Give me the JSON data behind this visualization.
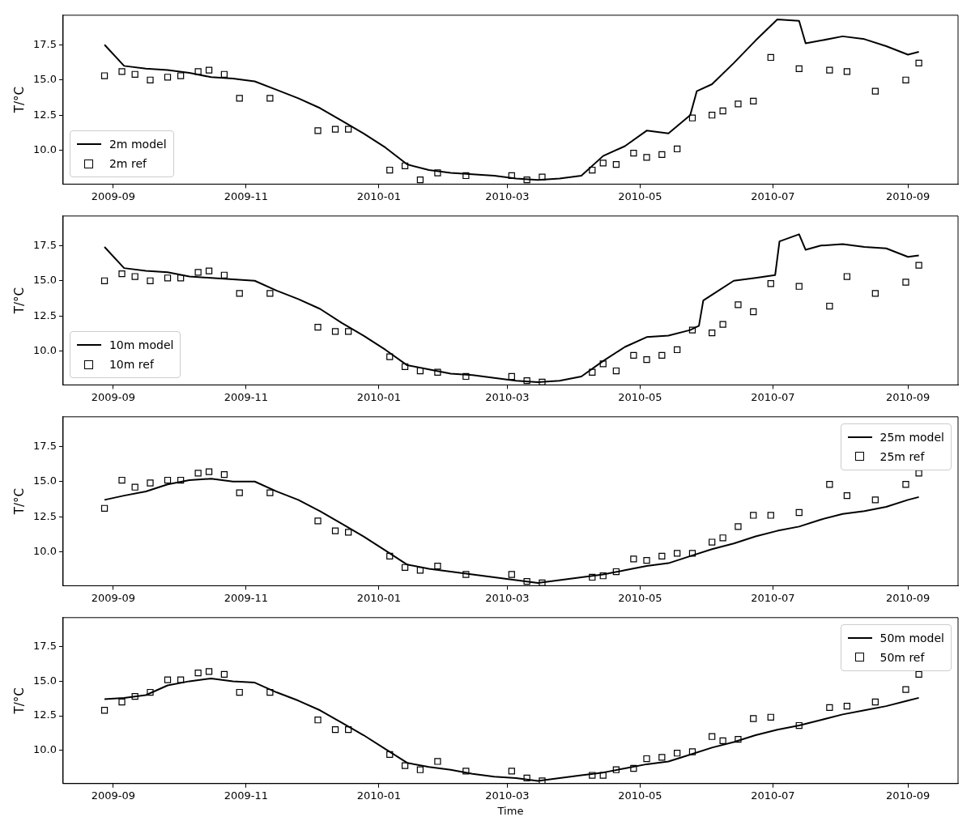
{
  "chart_data": [
    {
      "type": "line",
      "ylabel": "T/°C",
      "xlim": [
        "2009-08-09",
        "2010-09-24"
      ],
      "ylim": [
        7.6,
        19.6
      ],
      "xticks": [
        "2009-09",
        "2009-11",
        "2010-01",
        "2010-03",
        "2010-05",
        "2010-07",
        "2010-09"
      ],
      "yticks": [
        {
          "value": 10,
          "label": "10.0"
        },
        {
          "value": 12.5,
          "label": "12.5"
        },
        {
          "value": 15,
          "label": "15.0"
        },
        {
          "value": 17.5,
          "label": "17.5"
        }
      ],
      "grid": false,
      "legend": "bottom left",
      "series": [
        {
          "name": "2m model",
          "color": "#000000",
          "marker": "none",
          "line_style": "solid",
          "x": [
            "2009-08-28",
            "2009-09-06",
            "2009-09-16",
            "2009-09-26",
            "2009-10-06",
            "2009-10-16",
            "2009-10-26",
            "2009-11-05",
            "2009-11-15",
            "2009-11-25",
            "2009-12-05",
            "2009-12-15",
            "2009-12-25",
            "2010-01-04",
            "2010-01-14",
            "2010-01-24",
            "2010-02-03",
            "2010-02-13",
            "2010-02-23",
            "2010-03-05",
            "2010-03-15",
            "2010-03-25",
            "2010-04-04",
            "2010-04-14",
            "2010-04-24",
            "2010-05-04",
            "2010-05-14",
            "2010-05-24",
            "2010-05-27",
            "2010-06-03",
            "2010-06-13",
            "2010-06-23",
            "2010-07-03",
            "2010-07-13",
            "2010-07-16",
            "2010-07-23",
            "2010-08-02",
            "2010-08-12",
            "2010-08-22",
            "2010-09-01",
            "2010-09-06"
          ],
          "values": [
            17.5,
            16.0,
            15.8,
            15.7,
            15.5,
            15.2,
            15.1,
            14.9,
            14.3,
            13.7,
            13.0,
            12.1,
            11.2,
            10.2,
            9.0,
            8.6,
            8.4,
            8.3,
            8.2,
            8.0,
            7.9,
            8.0,
            8.2,
            9.6,
            10.3,
            11.4,
            11.2,
            12.5,
            14.2,
            14.7,
            16.2,
            17.8,
            19.3,
            19.2,
            17.6,
            17.8,
            18.1,
            17.9,
            17.4,
            16.8,
            17.0
          ]
        },
        {
          "name": "2m ref",
          "type": "scatter",
          "color": "#000000",
          "marker": "square",
          "x": [
            "2009-08-28",
            "2009-09-05",
            "2009-09-11",
            "2009-09-18",
            "2009-09-26",
            "2009-10-02",
            "2009-10-10",
            "2009-10-15",
            "2009-10-22",
            "2009-10-29",
            "2009-11-12",
            "2009-12-04",
            "2009-12-12",
            "2009-12-18",
            "2010-01-06",
            "2010-01-13",
            "2010-01-20",
            "2010-01-28",
            "2010-02-10",
            "2010-03-03",
            "2010-03-10",
            "2010-03-17",
            "2010-04-09",
            "2010-04-14",
            "2010-04-20",
            "2010-04-28",
            "2010-05-04",
            "2010-05-11",
            "2010-05-18",
            "2010-05-25",
            "2010-06-03",
            "2010-06-08",
            "2010-06-15",
            "2010-06-22",
            "2010-06-30",
            "2010-07-13",
            "2010-07-27",
            "2010-08-04",
            "2010-08-17",
            "2010-08-31",
            "2010-09-06"
          ],
          "values": [
            15.3,
            15.6,
            15.4,
            15.0,
            15.2,
            15.3,
            15.6,
            15.7,
            15.4,
            13.7,
            13.7,
            11.4,
            11.5,
            11.5,
            8.6,
            8.9,
            7.9,
            8.4,
            8.2,
            8.2,
            7.9,
            8.1,
            8.6,
            9.1,
            9.0,
            9.8,
            9.5,
            9.7,
            10.1,
            12.3,
            12.5,
            12.8,
            13.3,
            13.5,
            16.6,
            15.8,
            15.7,
            15.6,
            14.2,
            15.0,
            16.2
          ]
        }
      ]
    },
    {
      "type": "line",
      "ylabel": "T/°C",
      "xlim": [
        "2009-08-09",
        "2010-09-24"
      ],
      "ylim": [
        7.6,
        19.6
      ],
      "xticks": [
        "2009-09",
        "2009-11",
        "2010-01",
        "2010-03",
        "2010-05",
        "2010-07",
        "2010-09"
      ],
      "yticks": [
        {
          "value": 10,
          "label": "10.0"
        },
        {
          "value": 12.5,
          "label": "12.5"
        },
        {
          "value": 15,
          "label": "15.0"
        },
        {
          "value": 17.5,
          "label": "17.5"
        }
      ],
      "grid": false,
      "legend": "bottom left",
      "series": [
        {
          "name": "10m model",
          "color": "#000000",
          "marker": "none",
          "line_style": "solid",
          "x": [
            "2009-08-28",
            "2009-09-06",
            "2009-09-16",
            "2009-09-26",
            "2009-10-06",
            "2009-10-16",
            "2009-10-26",
            "2009-11-05",
            "2009-11-15",
            "2009-11-25",
            "2009-12-05",
            "2009-12-15",
            "2009-12-25",
            "2010-01-04",
            "2010-01-14",
            "2010-01-24",
            "2010-02-03",
            "2010-02-13",
            "2010-02-23",
            "2010-03-05",
            "2010-03-15",
            "2010-03-25",
            "2010-04-04",
            "2010-04-14",
            "2010-04-24",
            "2010-05-04",
            "2010-05-14",
            "2010-05-24",
            "2010-05-28",
            "2010-05-30",
            "2010-06-03",
            "2010-06-13",
            "2010-06-23",
            "2010-07-02",
            "2010-07-04",
            "2010-07-13",
            "2010-07-16",
            "2010-07-23",
            "2010-08-02",
            "2010-08-12",
            "2010-08-22",
            "2010-09-01",
            "2010-09-06"
          ],
          "values": [
            17.4,
            15.9,
            15.7,
            15.6,
            15.3,
            15.2,
            15.1,
            15.0,
            14.3,
            13.7,
            13.0,
            12.0,
            11.1,
            10.1,
            9.0,
            8.7,
            8.4,
            8.3,
            8.1,
            7.9,
            7.8,
            7.9,
            8.2,
            9.3,
            10.3,
            11.0,
            11.1,
            11.5,
            11.8,
            13.6,
            14.0,
            15.0,
            15.2,
            15.4,
            17.8,
            18.3,
            17.2,
            17.5,
            17.6,
            17.4,
            17.3,
            16.7,
            16.8
          ]
        },
        {
          "name": "10m ref",
          "type": "scatter",
          "color": "#000000",
          "marker": "square",
          "x": [
            "2009-08-28",
            "2009-09-05",
            "2009-09-11",
            "2009-09-18",
            "2009-09-26",
            "2009-10-02",
            "2009-10-10",
            "2009-10-15",
            "2009-10-22",
            "2009-10-29",
            "2009-11-12",
            "2009-12-04",
            "2009-12-12",
            "2009-12-18",
            "2010-01-06",
            "2010-01-13",
            "2010-01-20",
            "2010-01-28",
            "2010-02-10",
            "2010-03-03",
            "2010-03-10",
            "2010-03-17",
            "2010-04-09",
            "2010-04-14",
            "2010-04-20",
            "2010-04-28",
            "2010-05-04",
            "2010-05-11",
            "2010-05-18",
            "2010-05-25",
            "2010-06-03",
            "2010-06-08",
            "2010-06-15",
            "2010-06-22",
            "2010-06-30",
            "2010-07-13",
            "2010-07-27",
            "2010-08-04",
            "2010-08-17",
            "2010-08-31",
            "2010-09-06"
          ],
          "values": [
            15.0,
            15.5,
            15.3,
            15.0,
            15.2,
            15.2,
            15.6,
            15.7,
            15.4,
            14.1,
            14.1,
            11.7,
            11.4,
            11.4,
            9.6,
            8.9,
            8.6,
            8.5,
            8.2,
            8.2,
            7.9,
            7.8,
            8.5,
            9.1,
            8.6,
            9.7,
            9.4,
            9.7,
            10.1,
            11.5,
            11.3,
            11.9,
            13.3,
            12.8,
            14.8,
            14.6,
            13.2,
            15.3,
            14.1,
            14.9,
            16.1
          ]
        }
      ]
    },
    {
      "type": "line",
      "ylabel": "T/°C",
      "xlim": [
        "2009-08-09",
        "2010-09-24"
      ],
      "ylim": [
        7.6,
        19.6
      ],
      "xticks": [
        "2009-09",
        "2009-11",
        "2010-01",
        "2010-03",
        "2010-05",
        "2010-07",
        "2010-09"
      ],
      "yticks": [
        {
          "value": 10,
          "label": "10.0"
        },
        {
          "value": 12.5,
          "label": "12.5"
        },
        {
          "value": 15,
          "label": "15.0"
        },
        {
          "value": 17.5,
          "label": "17.5"
        }
      ],
      "grid": false,
      "legend": "top right",
      "series": [
        {
          "name": "25m model",
          "color": "#000000",
          "marker": "none",
          "line_style": "solid",
          "x": [
            "2009-08-28",
            "2009-09-06",
            "2009-09-16",
            "2009-09-26",
            "2009-10-06",
            "2009-10-16",
            "2009-10-26",
            "2009-11-05",
            "2009-11-15",
            "2009-11-25",
            "2009-12-05",
            "2009-12-15",
            "2009-12-25",
            "2010-01-04",
            "2010-01-14",
            "2010-01-24",
            "2010-02-03",
            "2010-02-13",
            "2010-02-23",
            "2010-03-05",
            "2010-03-15",
            "2010-03-25",
            "2010-04-04",
            "2010-04-14",
            "2010-04-24",
            "2010-05-04",
            "2010-05-14",
            "2010-05-24",
            "2010-06-03",
            "2010-06-13",
            "2010-06-23",
            "2010-07-03",
            "2010-07-13",
            "2010-07-23",
            "2010-08-02",
            "2010-08-12",
            "2010-08-22",
            "2010-09-01",
            "2010-09-06"
          ],
          "values": [
            13.7,
            14.0,
            14.3,
            14.8,
            15.1,
            15.2,
            15.0,
            15.0,
            14.3,
            13.7,
            12.9,
            12.0,
            11.1,
            10.1,
            9.1,
            8.8,
            8.6,
            8.4,
            8.2,
            8.0,
            7.8,
            8.0,
            8.2,
            8.4,
            8.7,
            9.0,
            9.2,
            9.7,
            10.2,
            10.6,
            11.1,
            11.5,
            11.8,
            12.3,
            12.7,
            12.9,
            13.2,
            13.7,
            13.9
          ]
        },
        {
          "name": "25m ref",
          "type": "scatter",
          "color": "#000000",
          "marker": "square",
          "x": [
            "2009-08-28",
            "2009-09-05",
            "2009-09-11",
            "2009-09-18",
            "2009-09-26",
            "2009-10-02",
            "2009-10-10",
            "2009-10-15",
            "2009-10-22",
            "2009-10-29",
            "2009-11-12",
            "2009-12-04",
            "2009-12-12",
            "2009-12-18",
            "2010-01-06",
            "2010-01-13",
            "2010-01-20",
            "2010-01-28",
            "2010-02-10",
            "2010-03-03",
            "2010-03-10",
            "2010-03-17",
            "2010-04-09",
            "2010-04-14",
            "2010-04-20",
            "2010-04-28",
            "2010-05-04",
            "2010-05-11",
            "2010-05-18",
            "2010-05-25",
            "2010-06-03",
            "2010-06-08",
            "2010-06-15",
            "2010-06-22",
            "2010-06-30",
            "2010-07-13",
            "2010-07-27",
            "2010-08-04",
            "2010-08-17",
            "2010-08-31",
            "2010-09-06"
          ],
          "values": [
            13.1,
            15.1,
            14.6,
            14.9,
            15.1,
            15.1,
            15.6,
            15.7,
            15.5,
            14.2,
            14.2,
            12.2,
            11.5,
            11.4,
            9.7,
            8.9,
            8.7,
            9.0,
            8.4,
            8.4,
            7.9,
            7.8,
            8.2,
            8.3,
            8.6,
            9.5,
            9.4,
            9.7,
            9.9,
            9.9,
            10.7,
            11.0,
            11.8,
            12.6,
            12.6,
            12.8,
            14.8,
            14.0,
            13.7,
            14.8,
            15.6
          ]
        }
      ]
    },
    {
      "type": "line",
      "xlabel": "Time",
      "ylabel": "T/°C",
      "xlim": [
        "2009-08-09",
        "2010-09-24"
      ],
      "ylim": [
        7.6,
        19.6
      ],
      "xticks": [
        "2009-09",
        "2009-11",
        "2010-01",
        "2010-03",
        "2010-05",
        "2010-07",
        "2010-09"
      ],
      "yticks": [
        {
          "value": 10,
          "label": "10.0"
        },
        {
          "value": 12.5,
          "label": "12.5"
        },
        {
          "value": 15,
          "label": "15.0"
        },
        {
          "value": 17.5,
          "label": "17.5"
        }
      ],
      "grid": false,
      "legend": "top right",
      "series": [
        {
          "name": "50m model",
          "color": "#000000",
          "marker": "none",
          "line_style": "solid",
          "x": [
            "2009-08-28",
            "2009-09-06",
            "2009-09-16",
            "2009-09-26",
            "2009-10-06",
            "2009-10-16",
            "2009-10-26",
            "2009-11-05",
            "2009-11-15",
            "2009-11-25",
            "2009-12-05",
            "2009-12-15",
            "2009-12-25",
            "2010-01-04",
            "2010-01-14",
            "2010-01-24",
            "2010-02-03",
            "2010-02-13",
            "2010-02-23",
            "2010-03-05",
            "2010-03-15",
            "2010-03-25",
            "2010-04-04",
            "2010-04-14",
            "2010-04-24",
            "2010-05-04",
            "2010-05-14",
            "2010-05-24",
            "2010-06-03",
            "2010-06-13",
            "2010-06-23",
            "2010-07-03",
            "2010-07-13",
            "2010-07-23",
            "2010-08-02",
            "2010-08-12",
            "2010-08-22",
            "2010-09-01",
            "2010-09-06"
          ],
          "values": [
            13.7,
            13.8,
            14.0,
            14.7,
            15.0,
            15.2,
            15.0,
            14.9,
            14.2,
            13.6,
            12.9,
            12.0,
            11.1,
            10.1,
            9.1,
            8.8,
            8.6,
            8.3,
            8.1,
            8.0,
            7.8,
            8.0,
            8.2,
            8.4,
            8.7,
            9.0,
            9.2,
            9.7,
            10.2,
            10.6,
            11.1,
            11.5,
            11.8,
            12.2,
            12.6,
            12.9,
            13.2,
            13.6,
            13.8
          ]
        },
        {
          "name": "50m ref",
          "type": "scatter",
          "color": "#000000",
          "marker": "square",
          "x": [
            "2009-08-28",
            "2009-09-05",
            "2009-09-11",
            "2009-09-18",
            "2009-09-26",
            "2009-10-02",
            "2009-10-10",
            "2009-10-15",
            "2009-10-22",
            "2009-10-29",
            "2009-11-12",
            "2009-12-04",
            "2009-12-12",
            "2009-12-18",
            "2010-01-06",
            "2010-01-13",
            "2010-01-20",
            "2010-01-28",
            "2010-02-10",
            "2010-03-03",
            "2010-03-10",
            "2010-03-17",
            "2010-04-09",
            "2010-04-14",
            "2010-04-20",
            "2010-04-28",
            "2010-05-04",
            "2010-05-11",
            "2010-05-18",
            "2010-05-25",
            "2010-06-03",
            "2010-06-08",
            "2010-06-15",
            "2010-06-22",
            "2010-06-30",
            "2010-07-13",
            "2010-07-27",
            "2010-08-04",
            "2010-08-17",
            "2010-08-31",
            "2010-09-06"
          ],
          "values": [
            12.9,
            13.5,
            13.9,
            14.2,
            15.1,
            15.1,
            15.6,
            15.7,
            15.5,
            14.2,
            14.2,
            12.2,
            11.5,
            11.5,
            9.7,
            8.9,
            8.6,
            9.2,
            8.5,
            8.5,
            8.0,
            7.8,
            8.2,
            8.2,
            8.6,
            8.7,
            9.4,
            9.5,
            9.8,
            9.9,
            11.0,
            10.7,
            10.8,
            12.3,
            12.4,
            11.8,
            13.1,
            13.2,
            13.5,
            14.4,
            15.5
          ]
        }
      ]
    }
  ]
}
